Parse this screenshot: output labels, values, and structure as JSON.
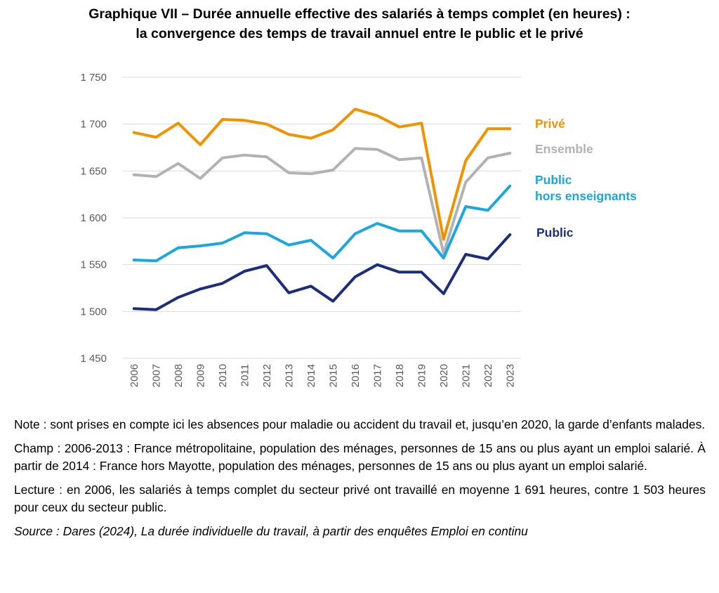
{
  "title": {
    "line1": "Graphique VII – Durée annuelle effective des salariés à temps complet (en heures) :",
    "line2": "la convergence des temps de travail annuel entre le public et le privé"
  },
  "chart_data": {
    "type": "line",
    "x": [
      "2006",
      "2007",
      "2008",
      "2009",
      "2010",
      "2011",
      "2012",
      "2013",
      "2014",
      "2015",
      "2016",
      "2017",
      "2018",
      "2019",
      "2020",
      "2021",
      "2022",
      "2023"
    ],
    "ylim": [
      1450,
      1750
    ],
    "yticks": [
      1450,
      1500,
      1550,
      1600,
      1650,
      1700,
      1750
    ],
    "ytick_labels": [
      "1 450",
      "1 500",
      "1 550",
      "1 600",
      "1 650",
      "1 700",
      "1 750"
    ],
    "grid": true,
    "legend_placement": "right, at end of lines",
    "series": [
      {
        "name": "Privé",
        "color": "#F39200",
        "values": [
          1691,
          1686,
          1701,
          1678,
          1705,
          1704,
          1700,
          1689,
          1685,
          1694,
          1716,
          1709,
          1697,
          1701,
          1577,
          1661,
          1695,
          1695
        ]
      },
      {
        "name": "Ensemble",
        "color": "#B2B2B2",
        "values": [
          1646,
          1644,
          1658,
          1642,
          1664,
          1667,
          1665,
          1648,
          1647,
          1651,
          1674,
          1673,
          1662,
          1664,
          1562,
          1638,
          1664,
          1669
        ]
      },
      {
        "name": "Public hors enseignants",
        "label_lines": [
          "Public",
          "hors enseignants"
        ],
        "color": "#1BA6E0",
        "values": [
          1555,
          1554,
          1568,
          1570,
          1573,
          1584,
          1583,
          1571,
          1576,
          1557,
          1583,
          1594,
          1586,
          1586,
          1557,
          1612,
          1608,
          1634
        ]
      },
      {
        "name": "Public",
        "color": "#1D2D7D",
        "values": [
          1503,
          1502,
          1515,
          1524,
          1530,
          1543,
          1549,
          1520,
          1527,
          1511,
          1537,
          1550,
          1542,
          1542,
          1519,
          1561,
          1556,
          1582
        ]
      }
    ]
  },
  "notes": {
    "note": "Note : sont prises en compte ici les absences pour maladie ou accident du travail et, jusqu’en 2020, la garde d’enfants malades.",
    "champ": "Champ : 2006-2013 : France métropolitaine, population des ménages, personnes de 15 ans ou plus ayant un emploi salarié. À partir de 2014 : France hors Mayotte, population des ménages, personnes de 15 ans ou plus ayant un emploi salarié.",
    "lecture": "Lecture : en 2006, les salariés à temps complet du secteur privé ont travaillé en moyenne 1 691 heures, contre 1 503 heures pour ceux du secteur public.",
    "source": "Source : Dares (2024), La durée individuelle du travail, à partir des enquêtes Emploi en continu"
  }
}
